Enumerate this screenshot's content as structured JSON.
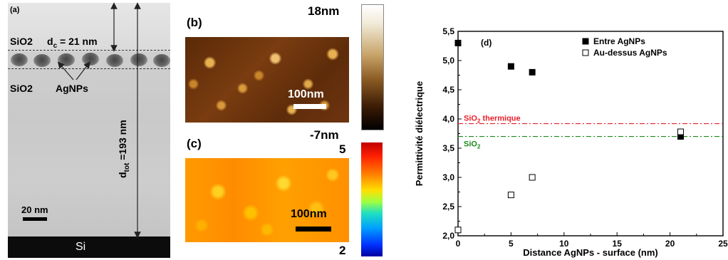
{
  "panel_a": {
    "label": "(a)",
    "sio2_top": "SiO2",
    "dc_label_main": "d",
    "dc_label_sub": "c",
    "dc_value": " = 21 nm",
    "sio2_bottom": "SiO2",
    "agnps": "AgNPs",
    "dtot_main": "d",
    "dtot_sub": "tot",
    "dtot_value": " =193 nm",
    "scale": "20 nm",
    "substrate": "Si"
  },
  "panel_b": {
    "label": "(b)",
    "scale": "100nm",
    "cbar_max": "18nm",
    "cbar_min": "-7nm"
  },
  "panel_c": {
    "label": "(c)",
    "scale": "100nm",
    "cbar_max": "5",
    "cbar_min": "2"
  },
  "chart_data": {
    "type": "scatter",
    "panel_label": "(d)",
    "xlabel": "Distance AgNPs - surface (nm)",
    "ylabel": "Permittivité diélectrique",
    "xlim": [
      0,
      25
    ],
    "ylim": [
      2.0,
      5.5
    ],
    "xticks": [
      "0",
      "5",
      "10",
      "15",
      "20",
      "25"
    ],
    "yticks": [
      "2,0",
      "2,5",
      "3,0",
      "3,5",
      "4,0",
      "4,5",
      "5,0",
      "5,5"
    ],
    "series": [
      {
        "name": "Entre AgNPs",
        "marker": "filled-square",
        "color": "#000000",
        "x": [
          0,
          5,
          7,
          21
        ],
        "y": [
          5.3,
          4.9,
          4.8,
          3.7
        ]
      },
      {
        "name": "Au-dessus AgNPs",
        "marker": "open-square",
        "color": "#000000",
        "x": [
          0,
          5,
          7,
          21
        ],
        "y": [
          2.1,
          2.7,
          3.0,
          3.78
        ]
      }
    ],
    "reference_lines": [
      {
        "label_main": "SiO",
        "label_sub": "2",
        "label_suffix": " thermique",
        "y": 3.92,
        "color": "#e8202a"
      },
      {
        "label_main": "SiO",
        "label_sub": "2",
        "label_suffix": "",
        "y": 3.7,
        "color": "#1a8a1a"
      }
    ],
    "legend_position": "top-right"
  }
}
